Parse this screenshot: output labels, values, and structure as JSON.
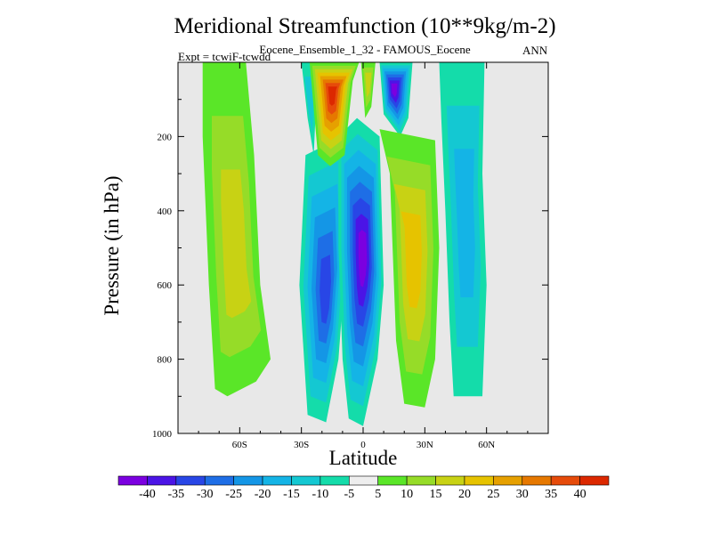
{
  "chart_data": {
    "type": "contour",
    "title": "Meridional Streamfunction (10**9kg/m-2)",
    "subtitle": "Eocene_Ensemble_1_32 - FAMOUS_Eocene",
    "experiment_label": "Expt = tcwiF-tcwdd",
    "season": "ANN",
    "xlabel": "Latitude",
    "ylabel": "Pressure (in hPa)",
    "xlim": [
      -90,
      90
    ],
    "ylim": [
      1000,
      0
    ],
    "y_reversed": true,
    "x_ticks": [
      {
        "value": -60,
        "label": "60S"
      },
      {
        "value": -30,
        "label": "30S"
      },
      {
        "value": 0,
        "label": "0"
      },
      {
        "value": 30,
        "label": "30N"
      },
      {
        "value": 60,
        "label": "60N"
      }
    ],
    "y_ticks": [
      {
        "value": 200,
        "label": "200"
      },
      {
        "value": 400,
        "label": "400"
      },
      {
        "value": 600,
        "label": "600"
      },
      {
        "value": 800,
        "label": "800"
      },
      {
        "value": 1000,
        "label": "1000"
      }
    ],
    "background_color": "#e8e8e8",
    "colorbar": {
      "levels": [
        -40,
        -35,
        -30,
        -25,
        -20,
        -15,
        -10,
        -5,
        5,
        10,
        15,
        20,
        25,
        30,
        35,
        40
      ],
      "labels": [
        "-40",
        "-35",
        "-30",
        "-25",
        "-20",
        "-15",
        "-10",
        "-5",
        "5",
        "10",
        "15",
        "20",
        "25",
        "30",
        "35",
        "40"
      ],
      "colors": [
        "#7b00e0",
        "#4b14e6",
        "#2846e6",
        "#1e6ee6",
        "#1496e6",
        "#14b4e6",
        "#14c8d2",
        "#14dcaa",
        "#eeeeee",
        "#5ae628",
        "#96dc28",
        "#c8d214",
        "#e6c300",
        "#e6a000",
        "#e67800",
        "#e64b0a",
        "#dc2800"
      ]
    },
    "fields": [
      {
        "name": "southern-hadley-positive",
        "sign": "positive",
        "core_value": 20,
        "lat_range": [
          -75,
          -45
        ],
        "pressure_range": [
          0,
          900
        ]
      },
      {
        "name": "equatorial-negative-cell",
        "sign": "negative",
        "core_value": -40,
        "lat_range": [
          -10,
          10
        ],
        "pressure_range": [
          150,
          970
        ]
      },
      {
        "name": "southern-negative-cell",
        "sign": "negative",
        "core_value": -30,
        "lat_range": [
          -30,
          -12
        ],
        "pressure_range": [
          250,
          960
        ]
      },
      {
        "name": "upper-positive-south",
        "sign": "positive",
        "core_value": 40,
        "lat_range": [
          -25,
          -10
        ],
        "pressure_range": [
          0,
          200
        ]
      },
      {
        "name": "upper-negative-north",
        "sign": "negative",
        "core_value": -40,
        "lat_range": [
          8,
          22
        ],
        "pressure_range": [
          0,
          150
        ]
      },
      {
        "name": "northern-hadley-positive",
        "sign": "positive",
        "core_value": 25,
        "lat_range": [
          15,
          35
        ],
        "pressure_range": [
          300,
          930
        ]
      },
      {
        "name": "northern-negative-cell",
        "sign": "negative",
        "core_value": -20,
        "lat_range": [
          40,
          60
        ],
        "pressure_range": [
          0,
          890
        ]
      }
    ]
  }
}
